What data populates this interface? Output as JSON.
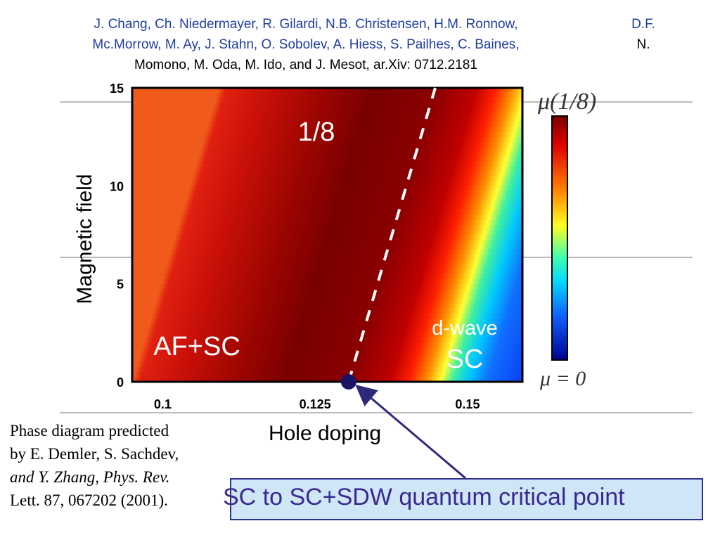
{
  "authors": {
    "line1": "J. Chang, Ch. Niedermayer, R. Gilardi, N.B. Christensen, H.M. Ronnow,",
    "line2": "Mc.Morrow, M. Ay, J. Stahn, O. Sobolev, A. Hiess, S. Pailhes, C. Baines,",
    "line3": "Momono, M. Oda, M. Ido, and J. Mesot, ar.Xiv: 0712.2181",
    "right1": "D.F.",
    "right2": "N."
  },
  "caption": {
    "l1": "Phase diagram predicted",
    "l2": "by E. Demler, S. Sachdev,",
    "l3": "and Y. Zhang, Phys. Rev.",
    "l4": "Lett. 87, 067202 (2001)."
  },
  "callout": {
    "text": "SC to SC+SDW quantum critical point"
  },
  "chart_data": {
    "type": "heatmap",
    "xlabel": "Hole doping",
    "ylabel": "Magnetic field",
    "x_ticks": [
      "0.1",
      "0.125",
      "0.15"
    ],
    "x_tick_values": [
      0.1,
      0.125,
      0.15
    ],
    "y_ticks": [
      "0",
      "5",
      "10",
      "15"
    ],
    "y_tick_values": [
      0,
      5,
      10,
      15
    ],
    "xlim": [
      0.095,
      0.159
    ],
    "ylim": [
      0,
      15
    ],
    "regions": [
      "1/8",
      "AF+SC",
      "d-wave",
      "SC"
    ],
    "colorbar_top": "μ(1/8)",
    "colorbar_bottom": "μ = 0",
    "phase_boundary": {
      "x": [
        0.1305,
        0.1447
      ],
      "y": [
        0,
        15
      ],
      "style": "dashed white"
    },
    "critical_point": {
      "x": 0.1305,
      "y": 0
    },
    "colors": {
      "max": "#7a0000",
      "min": "#0a40f2",
      "marker": "#1a1464",
      "arrow": "#2d2a7a"
    }
  }
}
